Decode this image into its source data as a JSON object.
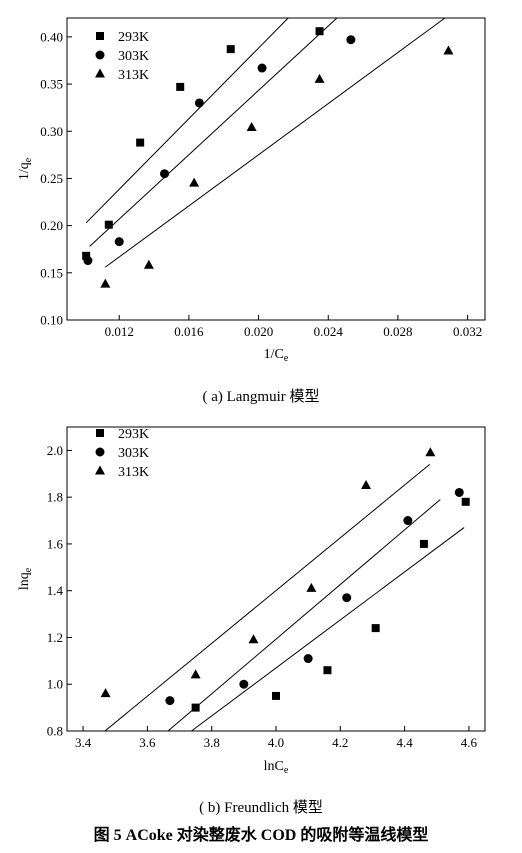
{
  "figure_caption": "图 5    ACoke 对染整废水 COD 的吸附等温线模型",
  "legend_labels": [
    "293K",
    "303K",
    "313K"
  ],
  "chart_data": [
    {
      "type": "scatter",
      "title": "",
      "caption": "( a) Langmuir 模型",
      "xlabel": "1/Ce",
      "ylabel": "1/qe",
      "xlim": [
        0.009,
        0.033
      ],
      "ylim": [
        0.1,
        0.42
      ],
      "xticks": [
        0.012,
        0.016,
        0.02,
        0.024,
        0.028,
        0.032
      ],
      "xtick_labels": [
        "0.012",
        "0.016",
        "0.020",
        "0.024",
        "0.028",
        "0.032"
      ],
      "yticks": [
        0.1,
        0.15,
        0.2,
        0.25,
        0.3,
        0.35,
        0.4
      ],
      "ytick_labels": [
        "0.10",
        "0.15",
        "0.20",
        "0.25",
        "0.30",
        "0.35",
        "0.40"
      ],
      "legend_position": "top-left",
      "grid": false,
      "series": [
        {
          "name": "293K",
          "marker": "square",
          "x": [
            0.0101,
            0.0114,
            0.0132,
            0.0155,
            0.0184,
            0.0235
          ],
          "y": [
            0.168,
            0.201,
            0.288,
            0.347,
            0.387,
            0.406
          ],
          "fit": [
            [
              0.0101,
              0.203
            ],
            [
              0.0217,
              0.42
            ]
          ]
        },
        {
          "name": "303K",
          "marker": "circle",
          "x": [
            0.0102,
            0.012,
            0.0146,
            0.0166,
            0.0202,
            0.0253
          ],
          "y": [
            0.163,
            0.183,
            0.255,
            0.33,
            0.367,
            0.397
          ],
          "fit": [
            [
              0.0103,
              0.178
            ],
            [
              0.0245,
              0.42
            ]
          ]
        },
        {
          "name": "313K",
          "marker": "triangle",
          "x": [
            0.0112,
            0.0137,
            0.0163,
            0.0196,
            0.0235,
            0.0309
          ],
          "y": [
            0.138,
            0.158,
            0.245,
            0.304,
            0.355,
            0.385
          ],
          "fit": [
            [
              0.0112,
              0.156
            ],
            [
              0.0307,
              0.42
            ]
          ]
        }
      ]
    },
    {
      "type": "scatter",
      "title": "",
      "caption": "( b) Freundlich 模型",
      "xlabel": "lnCe",
      "ylabel": "lnqe",
      "xlim": [
        3.35,
        4.65
      ],
      "ylim": [
        0.8,
        2.1
      ],
      "xticks": [
        3.4,
        3.6,
        3.8,
        4.0,
        4.2,
        4.4,
        4.6
      ],
      "xtick_labels": [
        "3.4",
        "3.6",
        "3.8",
        "4.0",
        "4.2",
        "4.4",
        "4.6"
      ],
      "yticks": [
        0.8,
        1.0,
        1.2,
        1.4,
        1.6,
        1.8,
        2.0
      ],
      "ytick_labels": [
        "0.8",
        "1.0",
        "1.2",
        "1.4",
        "1.6",
        "1.8",
        "2.0"
      ],
      "legend_position": "top-left",
      "grid": false,
      "series": [
        {
          "name": "293K",
          "marker": "square",
          "x": [
            3.75,
            4.0,
            4.16,
            4.31,
            4.46,
            4.59
          ],
          "y": [
            0.9,
            0.95,
            1.06,
            1.24,
            1.6,
            1.78
          ],
          "fit": [
            [
              3.737,
              0.8
            ],
            [
              4.585,
              1.67
            ]
          ]
        },
        {
          "name": "303K",
          "marker": "circle",
          "x": [
            3.67,
            3.9,
            4.1,
            4.22,
            4.41,
            4.57
          ],
          "y": [
            0.93,
            1.0,
            1.11,
            1.37,
            1.7,
            1.82
          ],
          "fit": [
            [
              3.664,
              0.8
            ],
            [
              4.511,
              1.79
            ]
          ]
        },
        {
          "name": "313K",
          "marker": "triangle",
          "x": [
            3.47,
            3.75,
            3.93,
            4.11,
            4.28,
            4.48
          ],
          "y": [
            0.96,
            1.04,
            1.19,
            1.41,
            1.85,
            1.99
          ],
          "fit": [
            [
              3.468,
              0.8
            ],
            [
              4.478,
              1.94
            ]
          ]
        }
      ]
    }
  ]
}
